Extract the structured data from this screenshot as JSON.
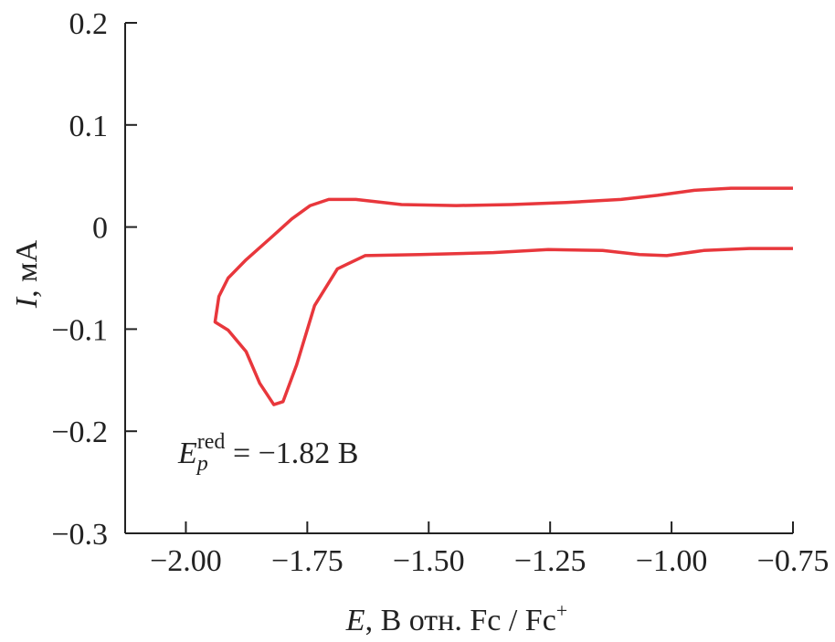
{
  "chart_data": {
    "type": "line",
    "x_label": [
      "E",
      ", В отн. Fc / Fc",
      "+"
    ],
    "y_label": [
      "I",
      ", мА"
    ],
    "annotation": [
      "E",
      "p",
      "red",
      " = −1.82 В"
    ],
    "xlim": [
      -2.125,
      -0.75
    ],
    "xticks": [
      {
        "value": -2.0,
        "label": "−2.00"
      },
      {
        "value": -1.75,
        "label": "−1.75"
      },
      {
        "value": -1.5,
        "label": "−1.50"
      },
      {
        "value": -1.25,
        "label": "−1.25"
      },
      {
        "value": -1.0,
        "label": "−1.00"
      },
      {
        "value": -0.75,
        "label": "−0.75"
      }
    ],
    "ylim": [
      -0.3,
      0.2
    ],
    "yticks": [
      {
        "value": -0.3,
        "label": "−0.3"
      },
      {
        "value": -0.2,
        "label": "−0.2"
      },
      {
        "value": -0.1,
        "label": "−0.1"
      },
      0,
      0.1,
      0.2
    ],
    "series": [
      {
        "color": "#e8373c",
        "x": [
          -0.75,
          -0.878,
          -0.953,
          -1.029,
          -1.104,
          -1.217,
          -1.33,
          -1.443,
          -1.556,
          -1.65,
          -1.706,
          -1.744,
          -1.782,
          -1.819,
          -1.876,
          -1.913,
          -1.932,
          -1.94,
          -1.913,
          -1.876,
          -1.848,
          -1.819,
          -1.8,
          -1.772,
          -1.735,
          -1.688,
          -1.631,
          -1.518,
          -1.367,
          -1.254,
          -1.142,
          -1.066,
          -1.01,
          -0.934,
          -0.84,
          -0.75
        ],
        "values": [
          0.038,
          0.038,
          0.036,
          0.031,
          0.027,
          0.024,
          0.022,
          0.021,
          0.022,
          0.027,
          0.027,
          0.021,
          0.008,
          -0.008,
          -0.032,
          -0.05,
          -0.068,
          -0.093,
          -0.101,
          -0.122,
          -0.153,
          -0.174,
          -0.171,
          -0.135,
          -0.077,
          -0.041,
          -0.028,
          -0.027,
          -0.025,
          -0.022,
          -0.023,
          -0.027,
          -0.028,
          -0.023,
          -0.021,
          -0.021
        ]
      }
    ]
  }
}
